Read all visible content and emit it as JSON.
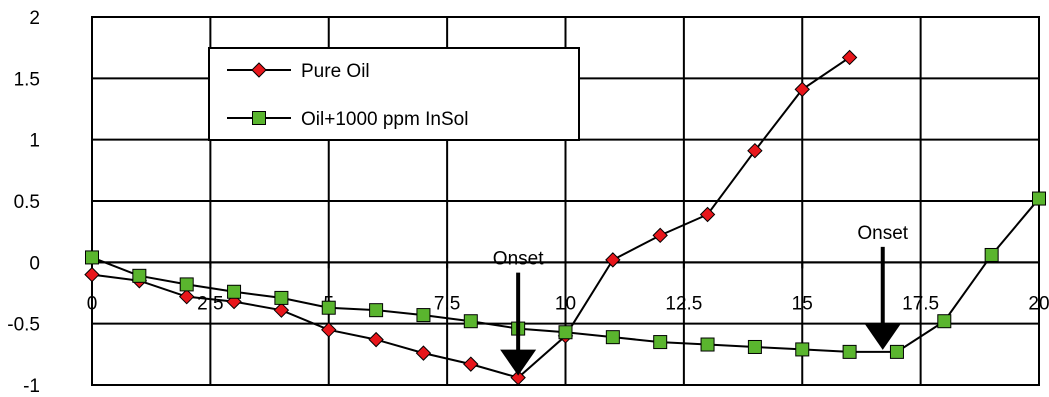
{
  "chart_data": {
    "type": "line",
    "xlim": [
      0,
      20
    ],
    "ylim": [
      -1,
      2
    ],
    "x_ticks": [
      0,
      2.5,
      5,
      7.5,
      10,
      12.5,
      15,
      17.5,
      20
    ],
    "x_tick_labels": [
      "0",
      "2.5",
      "5",
      "7.5",
      "10",
      "12.5",
      "15",
      "17.5",
      "20"
    ],
    "y_ticks": [
      -1,
      -0.5,
      0,
      0.5,
      1,
      1.5,
      2
    ],
    "y_tick_labels": [
      "-1",
      "-0.5",
      "0",
      "0.5",
      "1",
      "1.5",
      "2"
    ],
    "grid": true,
    "legend_position": "top-left",
    "series": [
      {
        "name": "Pure Oil",
        "marker": "diamond",
        "color": "#e8161b",
        "x": [
          0,
          1,
          2,
          3,
          4,
          5,
          6,
          7,
          8,
          9,
          10,
          11,
          12,
          13,
          14,
          15,
          16
        ],
        "y": [
          -0.1,
          -0.15,
          -0.28,
          -0.32,
          -0.39,
          -0.55,
          -0.63,
          -0.74,
          -0.83,
          -0.94,
          -0.6,
          0.02,
          0.22,
          0.39,
          0.91,
          1.41,
          1.67
        ]
      },
      {
        "name": "Oil+1000 ppm InSol",
        "marker": "square",
        "color": "#5ab52e",
        "x": [
          0,
          1,
          2,
          3,
          4,
          5,
          6,
          7,
          8,
          9,
          10,
          11,
          12,
          13,
          14,
          15,
          16,
          17,
          18,
          19,
          20
        ],
        "y": [
          0.04,
          -0.11,
          -0.18,
          -0.24,
          -0.29,
          -0.37,
          -0.39,
          -0.43,
          -0.48,
          -0.54,
          -0.57,
          -0.61,
          -0.65,
          -0.67,
          -0.69,
          -0.71,
          -0.73,
          -0.73,
          -0.48,
          0.06,
          0.52
        ]
      }
    ],
    "annotations": [
      {
        "text": "Onset",
        "x": 9,
        "y": -0.94
      },
      {
        "text": "Onset",
        "x": 16.7,
        "y": -0.73
      }
    ]
  }
}
